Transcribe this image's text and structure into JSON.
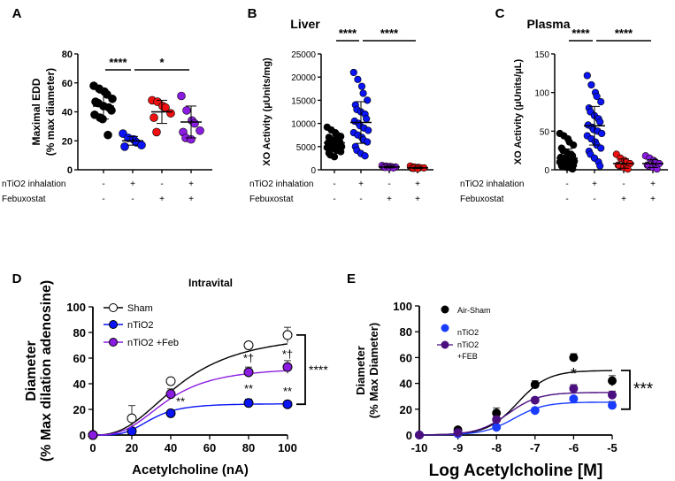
{
  "chart_data": [
    {
      "id": "A",
      "panel_label": "A",
      "type": "scatter",
      "title": "",
      "ylabel": [
        "Maximal EDD",
        "(% max diameter)"
      ],
      "ylim": [
        0,
        80
      ],
      "yticks": [
        0,
        20,
        40,
        60,
        80
      ],
      "row_labels": [
        "nTiO2 inhalation",
        "Febuxostat"
      ],
      "row_values": [
        [
          "-",
          "+",
          "-",
          "+"
        ],
        [
          "-",
          "-",
          "+",
          "+"
        ]
      ],
      "groups": [
        {
          "color": "#000000",
          "values": [
            58,
            56,
            54,
            52,
            49,
            47,
            46,
            44,
            43,
            41,
            38,
            36,
            35,
            24
          ],
          "mean": 44,
          "sd": 9
        },
        {
          "color": "#0a14f5",
          "values": [
            25,
            22,
            21,
            19,
            17,
            16
          ],
          "mean": 20,
          "sd": 3
        },
        {
          "color": "#f01010",
          "values": [
            48,
            47,
            44,
            43,
            39,
            36,
            26
          ],
          "mean": 40,
          "sd": 8
        },
        {
          "color": "#8a1be0",
          "values": [
            51,
            41,
            34,
            32,
            27,
            26,
            22,
            21
          ],
          "mean": 33,
          "sd": 11
        }
      ],
      "significance": [
        {
          "from": 0,
          "to": 1,
          "label": "****"
        },
        {
          "from": 1,
          "to": 3,
          "label": "*"
        }
      ]
    },
    {
      "id": "B",
      "panel_label": "B",
      "type": "scatter",
      "title": "Liver",
      "ylabel": [
        "XO Activity (μUnits/mg)"
      ],
      "ylim": [
        0,
        25000
      ],
      "yticks": [
        0,
        5000,
        10000,
        15000,
        20000,
        25000
      ],
      "row_labels": [
        "nTiO2 inhalation",
        "Febuxostat"
      ],
      "row_values": [
        [
          "-",
          "+",
          "-",
          "+"
        ],
        [
          "-",
          "-",
          "+",
          "+"
        ]
      ],
      "groups": [
        {
          "color": "#000000",
          "values": [
            9200,
            8600,
            8000,
            7600,
            7200,
            7000,
            6600,
            6400,
            6200,
            6000,
            5800,
            5600,
            5400,
            5200,
            5000,
            4800,
            4600,
            4400,
            4200,
            3900,
            3600,
            3200,
            2800
          ],
          "mean": 5800,
          "sd": 1500
        },
        {
          "color": "#0a14f5",
          "values": [
            21000,
            19500,
            18000,
            16500,
            15000,
            14000,
            13000,
            12500,
            12000,
            11000,
            10500,
            10000,
            9500,
            9000,
            8500,
            8000,
            7500,
            7000,
            6500,
            6000,
            5000,
            4200,
            3500,
            3000
          ],
          "mean": 10200,
          "sd": 4500
        },
        {
          "color": "#8a1be0",
          "values": [
            900,
            800,
            700,
            650,
            600,
            550,
            500,
            450,
            400
          ],
          "mean": 600,
          "sd": 200
        },
        {
          "color": "#f01010",
          "values": [
            800,
            600,
            500,
            450,
            400,
            350,
            300,
            250
          ],
          "mean": 400,
          "sd": 150
        }
      ],
      "significance": [
        {
          "from": 0,
          "to": 1,
          "label": "****"
        },
        {
          "from": 1,
          "to": 3,
          "label": "****"
        }
      ]
    },
    {
      "id": "C",
      "panel_label": "C",
      "type": "scatter",
      "title": "Plasma",
      "ylabel": [
        "XO Activity (μUnits/μL)"
      ],
      "ylim": [
        0,
        150
      ],
      "yticks": [
        0,
        50,
        100,
        150
      ],
      "row_labels": [
        "nTiO2 inhalation",
        "Febuxostat"
      ],
      "row_values": [
        [
          "-",
          "+",
          "-",
          "+"
        ],
        [
          "-",
          "-",
          "+",
          "+"
        ]
      ],
      "groups": [
        {
          "color": "#000000",
          "values": [
            47,
            44,
            40,
            36,
            32,
            28,
            25,
            22,
            20,
            18,
            16,
            15,
            14,
            12,
            11,
            10,
            9,
            8,
            7,
            6,
            5,
            4,
            3,
            2,
            1
          ],
          "mean": 15,
          "sd": 12
        },
        {
          "color": "#0a14f5",
          "values": [
            122,
            110,
            100,
            95,
            88,
            80,
            75,
            70,
            66,
            62,
            58,
            55,
            52,
            50,
            47,
            44,
            40,
            36,
            32,
            28,
            24,
            20,
            15,
            10,
            5
          ],
          "mean": 57,
          "sd": 25
        },
        {
          "color": "#f01010",
          "values": [
            20,
            15,
            12,
            10,
            8,
            6,
            5,
            3,
            1
          ],
          "mean": 8,
          "sd": 6
        },
        {
          "color": "#8a1be0",
          "values": [
            18,
            15,
            12,
            10,
            8,
            6,
            5,
            3,
            1
          ],
          "mean": 8,
          "sd": 5
        }
      ],
      "significance": [
        {
          "from": 0,
          "to": 1,
          "label": "****"
        },
        {
          "from": 1,
          "to": 3,
          "label": "****"
        }
      ]
    },
    {
      "id": "D",
      "panel_label": "D",
      "type": "line",
      "title": "Intravital",
      "xlabel": "Acetylcholine (nA)",
      "ylabel": [
        "Diameter",
        "(% Max dilation adenosine)"
      ],
      "xlim": [
        0,
        100
      ],
      "xticks": [
        0,
        20,
        40,
        60,
        80,
        100
      ],
      "ylim": [
        0,
        100
      ],
      "yticks": [
        0,
        20,
        40,
        60,
        80,
        100
      ],
      "series": [
        {
          "name": "Sham",
          "color": "#000000",
          "open": true,
          "x": [
            0,
            20,
            40,
            80,
            100
          ],
          "y": [
            0,
            13,
            42,
            70,
            78
          ],
          "err": [
            0,
            10,
            2,
            2,
            6
          ],
          "fit": {
            "top": 80,
            "ec50": 45,
            "n": 2.6
          }
        },
        {
          "name": "nTiO2",
          "color": "#0a14f5",
          "open": false,
          "x": [
            0,
            20,
            40,
            80,
            100
          ],
          "y": [
            0,
            3,
            17,
            25,
            24
          ],
          "err": [
            0,
            2,
            2,
            3,
            2
          ],
          "fit": {
            "top": 24.5,
            "ec50": 30,
            "n": 4
          }
        },
        {
          "name": "nTiO2 +Feb",
          "color": "#8a1be0",
          "open": false,
          "x": [
            0,
            40,
            80,
            100
          ],
          "y": [
            0,
            32,
            49,
            53
          ],
          "err": [
            0,
            4,
            4,
            5
          ],
          "fit": {
            "top": 53,
            "ec50": 38,
            "n": 3
          }
        }
      ],
      "legend": [
        "Sham",
        "nTiO2",
        "nTiO2 +Feb"
      ],
      "annotations": [
        {
          "x": 80,
          "y": 57,
          "text": "*†"
        },
        {
          "x": 100,
          "y": 60,
          "text": "*†"
        },
        {
          "x": 45,
          "y": 23,
          "text": "**"
        },
        {
          "x": 80,
          "y": 33,
          "text": "**"
        },
        {
          "x": 100,
          "y": 31,
          "text": "**"
        }
      ],
      "bracket": {
        "from": 78,
        "to": 24,
        "label": "****"
      }
    },
    {
      "id": "E",
      "panel_label": "E",
      "type": "line",
      "title": "",
      "xlabel": "Log Acetylcholine [M]",
      "ylabel": [
        "Diameter",
        "(% Max Diameter)"
      ],
      "xlim": [
        -10,
        -5
      ],
      "xticks": [
        -10,
        -9,
        -8,
        -7,
        -6,
        -5
      ],
      "ylim": [
        0,
        100
      ],
      "yticks": [
        0,
        20,
        40,
        60,
        80,
        100
      ],
      "series": [
        {
          "name": "Air-Sham",
          "color": "#000000",
          "x": [
            -10,
            -9,
            -8,
            -7,
            -6,
            -5
          ],
          "y": [
            0,
            4,
            17,
            39,
            60,
            42
          ],
          "err": [
            0,
            1,
            4,
            3,
            3,
            4
          ],
          "fit": {
            "top": 50,
            "logec50": -7.45,
            "h": 1.1
          }
        },
        {
          "name": "nTiO2",
          "color": "#1a3cff",
          "x": [
            -10,
            -9,
            -8,
            -7,
            -6,
            -5
          ],
          "y": [
            0,
            1,
            6,
            19,
            28,
            23
          ],
          "err": [
            0,
            1,
            2,
            2,
            2,
            3
          ],
          "fit": {
            "top": 25.5,
            "logec50": -7.55,
            "h": 1.1
          }
        },
        {
          "name": "nTiO2 +FEB",
          "color": "#4b0f80",
          "x": [
            -10,
            -9,
            -8,
            -7,
            -6,
            -5
          ],
          "y": [
            0,
            2,
            12,
            27,
            36,
            31
          ],
          "err": [
            0,
            1,
            2,
            2,
            3,
            3
          ],
          "fit": {
            "top": 33,
            "logec50": -7.7,
            "h": 1.1
          }
        }
      ],
      "legend": [
        "Air-Sham",
        "nTiO2",
        "nTiO2",
        "+FEB"
      ],
      "annotations": [
        {
          "x": -7,
          "y": 33,
          "text": "*"
        },
        {
          "x": -6,
          "y": 43,
          "text": "*"
        }
      ],
      "bracket": {
        "from": 50,
        "to": 20,
        "label": "***"
      }
    }
  ]
}
